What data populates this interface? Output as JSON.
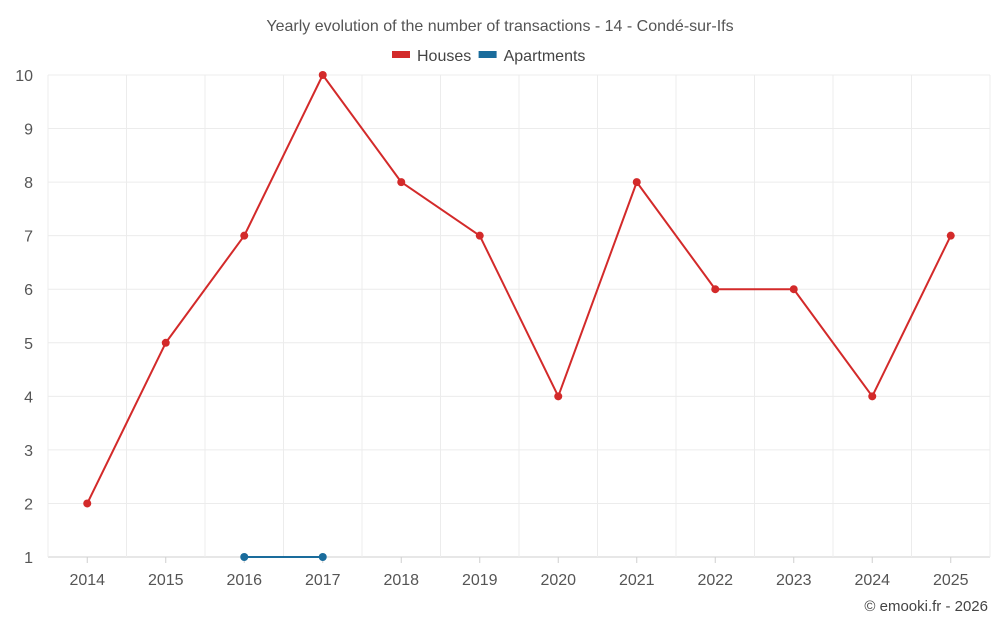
{
  "chart_data": {
    "type": "line",
    "title": "Yearly evolution of the number of transactions - 14 - Condé-sur-Ifs",
    "categories": [
      "2014",
      "2015",
      "2016",
      "2017",
      "2018",
      "2019",
      "2020",
      "2021",
      "2022",
      "2023",
      "2024",
      "2025"
    ],
    "series": [
      {
        "name": "Houses",
        "color": "#d32a2a",
        "values": [
          2,
          5,
          7,
          10,
          8,
          7,
          4,
          8,
          6,
          6,
          4,
          7
        ]
      },
      {
        "name": "Apartments",
        "color": "#1a6c9c",
        "values": [
          null,
          null,
          1,
          1,
          null,
          null,
          null,
          null,
          null,
          null,
          null,
          null
        ]
      }
    ],
    "yticks": [
      1,
      2,
      3,
      4,
      5,
      6,
      7,
      8,
      9,
      10
    ],
    "ylim": [
      1,
      10
    ],
    "xlabel": "",
    "ylabel": "",
    "grid": true,
    "legend": "top-center"
  },
  "credit": "© emooki.fr - 2026"
}
